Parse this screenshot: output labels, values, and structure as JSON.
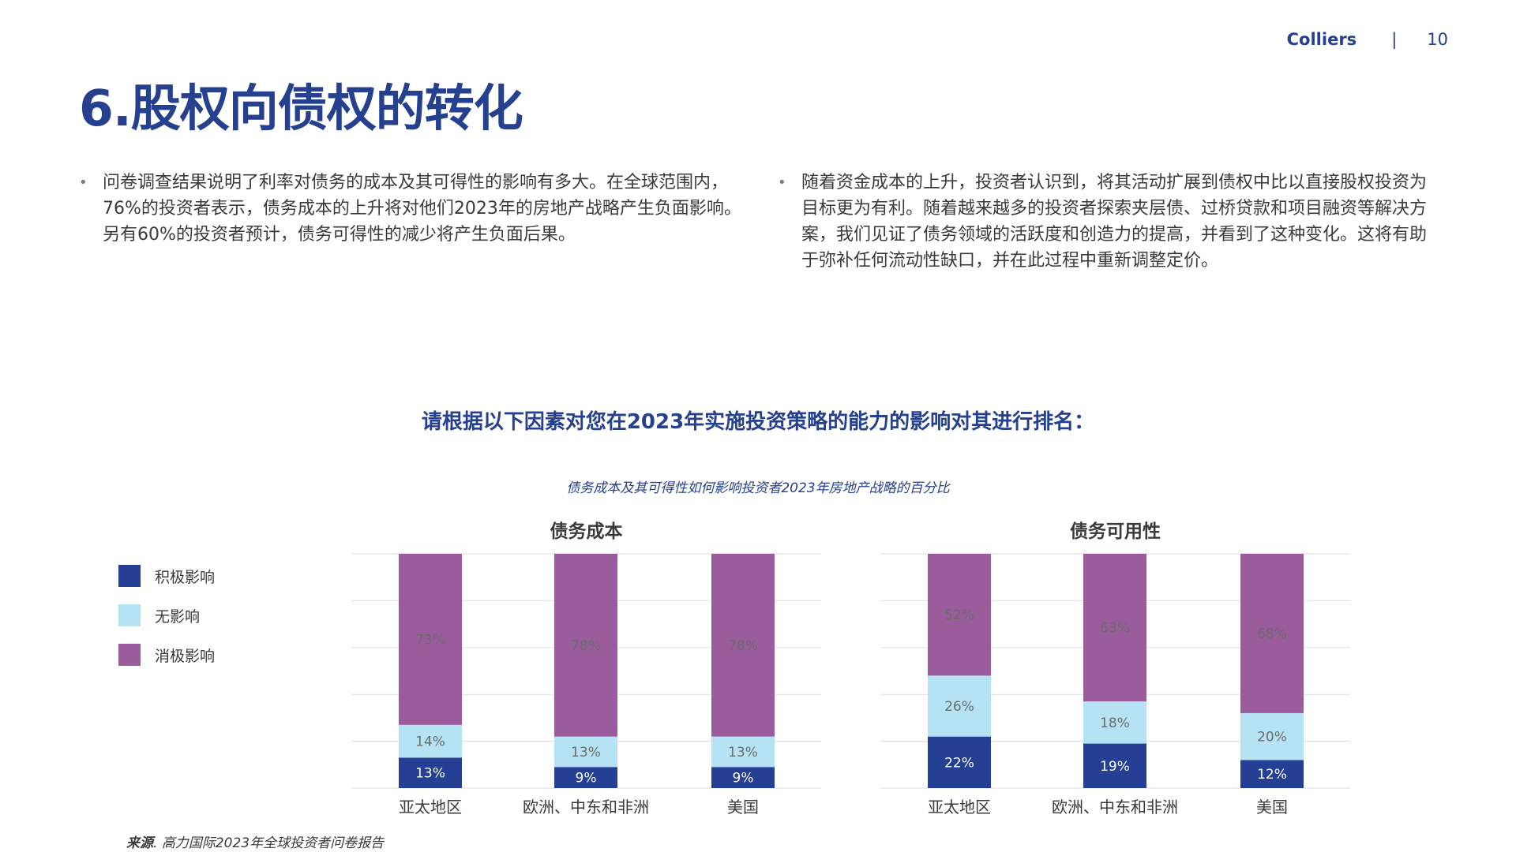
{
  "header": {
    "brand": "Colliers",
    "separator": "|",
    "page_number": "10"
  },
  "title": {
    "bold_part": "6.股权向债权",
    "normal_part": "的转化"
  },
  "bullets": {
    "left": "问卷调查结果说明了利率对债务的成本及其可得性的影响有多大。在全球范围内，76%的投资者表示，债务成本的上升将对他们2023年的房地产战略产生负面影响。另有60%的投资者预计，债务可得性的减少将产生负面后果。",
    "right": "随着资金成本的上升，投资者认识到，将其活动扩展到债权中比以直接股权投资为目标更为有利。随着越来越多的投资者探索夹层债、过桥贷款和项目融资等解决方案，我们见证了债务领域的活跃度和创造力的提高，并看到了这种变化。这将有助于弥补任何流动性缺口，并在此过程中重新调整定价。",
    "bullet_symbol": "•"
  },
  "survey_question": "请根据以下因素对您在2023年实施投资策略的能力的影响对其进行排名：",
  "chart_caption": "债务成本及其可得性如何影响投资者2023年房地产战略的百分比",
  "legend": [
    {
      "label": "积极影响",
      "color": "#253f94"
    },
    {
      "label": "无影响",
      "color": "#b5e3f3"
    },
    {
      "label": "消极影响",
      "color": "#9b5c9e"
    }
  ],
  "chart_data": [
    {
      "type": "bar",
      "stacked": true,
      "title": "债务成本",
      "categories": [
        "亚太地区",
        "欧洲、中东和非洲",
        "美国"
      ],
      "series": [
        {
          "name": "积极影响",
          "values": [
            13,
            9,
            9
          ]
        },
        {
          "name": "无影响",
          "values": [
            14,
            13,
            13
          ]
        },
        {
          "name": "消极影响",
          "values": [
            73,
            78,
            78
          ]
        }
      ],
      "ylim": [
        0,
        100
      ],
      "value_suffix": "%",
      "grid": true
    },
    {
      "type": "bar",
      "stacked": true,
      "title": "债务可用性",
      "categories": [
        "亚太地区",
        "欧洲、中东和非洲",
        "美国"
      ],
      "series": [
        {
          "name": "积极影响",
          "values": [
            22,
            19,
            12
          ]
        },
        {
          "name": "无影响",
          "values": [
            26,
            18,
            20
          ]
        },
        {
          "name": "消极影响",
          "values": [
            52,
            63,
            68
          ]
        }
      ],
      "ylim": [
        0,
        100
      ],
      "value_suffix": "%",
      "grid": true
    }
  ],
  "colors": {
    "brand": "#25408f",
    "positive": "#253f94",
    "neutral": "#b5e3f3",
    "negative": "#9b5c9e",
    "grid": "#dddddd",
    "label_on_dark": "#ffffff",
    "label_on_light": "#6b6b6b"
  },
  "source": {
    "label": "来源",
    "text": "高力国际2023年全球投资者问卷报告"
  }
}
